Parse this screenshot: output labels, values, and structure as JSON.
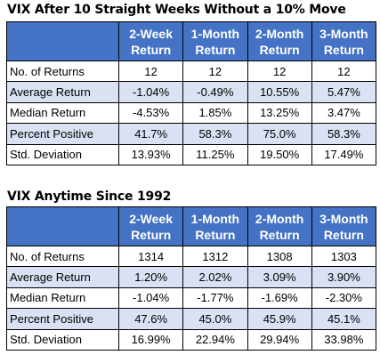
{
  "tables": [
    {
      "title": "VIX After 10 Straight Weeks Without a 10% Move",
      "columns": [
        [
          "2-Week",
          "Return"
        ],
        [
          "1-Month",
          "Return"
        ],
        [
          "2-Month",
          "Return"
        ],
        [
          "3-Month",
          "Return"
        ]
      ],
      "rows": [
        {
          "label": "No. of Returns",
          "values": [
            "12",
            "12",
            "12",
            "12"
          ]
        },
        {
          "label": "Average Return",
          "values": [
            "-1.04%",
            "-0.49%",
            "10.55%",
            "5.47%"
          ]
        },
        {
          "label": "Median Return",
          "values": [
            "-4.53%",
            "1.85%",
            "13.25%",
            "3.47%"
          ]
        },
        {
          "label": "Percent Positive",
          "values": [
            "41.7%",
            "58.3%",
            "75.0%",
            "58.3%"
          ]
        },
        {
          "label": "Std. Deviation",
          "values": [
            "13.93%",
            "11.25%",
            "19.50%",
            "17.49%"
          ]
        }
      ]
    },
    {
      "title": "VIX Anytime Since 1992",
      "columns": [
        [
          "2-Week",
          "Return"
        ],
        [
          "1-Month",
          "Return"
        ],
        [
          "2-Month",
          "Return"
        ],
        [
          "3-Month",
          "Return"
        ]
      ],
      "rows": [
        {
          "label": "No. of Returns",
          "values": [
            "1314",
            "1312",
            "1308",
            "1303"
          ]
        },
        {
          "label": "Average Return",
          "values": [
            "1.20%",
            "2.02%",
            "3.09%",
            "3.90%"
          ]
        },
        {
          "label": "Median Return",
          "values": [
            "-1.04%",
            "-1.77%",
            "-1.69%",
            "-2.30%"
          ]
        },
        {
          "label": "Percent Positive",
          "values": [
            "47.6%",
            "45.0%",
            "45.9%",
            "45.1%"
          ]
        },
        {
          "label": "Std. Deviation",
          "values": [
            "16.99%",
            "22.94%",
            "29.94%",
            "33.98%"
          ]
        }
      ]
    }
  ],
  "colors": {
    "header_bg": "#4472c4",
    "header_text": "#ffffff",
    "band_bg": "#d9e1f2",
    "border": "#000000"
  }
}
